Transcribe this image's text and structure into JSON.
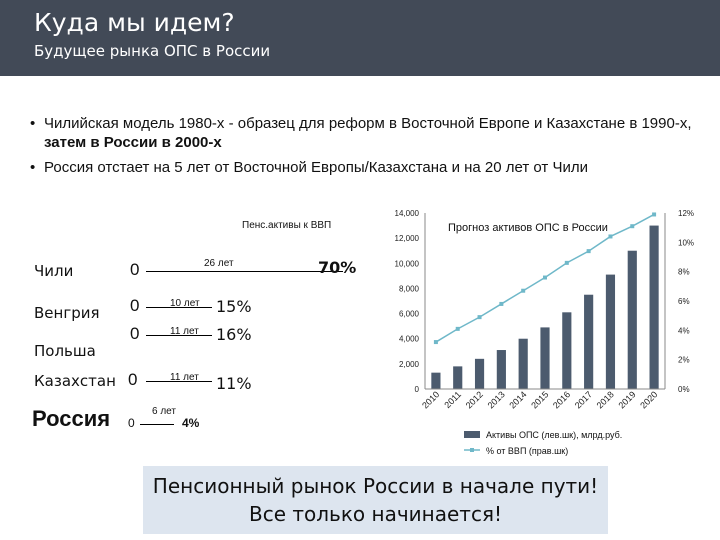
{
  "header": {
    "title": "Куда мы идем?",
    "subtitle": "Будущее рынка ОПС в России",
    "bg_color": "#424a57"
  },
  "bullets": [
    {
      "text": "Чилийская модель 1980-х - образец для реформ в Восточной Европе и Казахстане в 1990-х, ",
      "bold": "затем в России в 2000-х"
    },
    {
      "text": "Россия отстает на 5 лет от Восточной Европы/Казахстана и на 20 лет от Чили",
      "bold": ""
    }
  ],
  "timeline": {
    "title": "Пенс.активы к ВВП",
    "rows": [
      {
        "country": "Чили",
        "start": "0",
        "years": "26 лет",
        "pct": "70%"
      },
      {
        "country": "Венгрия",
        "start": "0",
        "years": "10 лет",
        "pct": "15%"
      },
      {
        "country": "Польша",
        "start": "0",
        "years": "11 лет",
        "pct": "16%"
      },
      {
        "country": "Казахстан",
        "start": "0",
        "years": "11 лет",
        "pct": "11%"
      },
      {
        "country": "Россия",
        "start": "0",
        "years": "6 лет",
        "pct": "4%"
      }
    ]
  },
  "chart_data": {
    "type": "bar",
    "title": "Прогноз активов ОПС в России",
    "categories": [
      "2010",
      "2011",
      "2012",
      "2013",
      "2014",
      "2015",
      "2016",
      "2017",
      "2018",
      "2019",
      "2020"
    ],
    "series": [
      {
        "name": "Активы ОПС (лев.шк), млрд.руб.",
        "type": "bar",
        "axis": "left",
        "values": [
          1300,
          1800,
          2400,
          3100,
          4000,
          4900,
          6100,
          7500,
          9100,
          11000,
          13000
        ],
        "color": "#4c5b6e"
      },
      {
        "name": "% от ВВП (прав.шк)",
        "type": "line",
        "axis": "right",
        "values": [
          3.2,
          4.1,
          4.9,
          5.8,
          6.7,
          7.6,
          8.6,
          9.4,
          10.4,
          11.1,
          11.9
        ],
        "color": "#6fb8c9"
      }
    ],
    "y_left": {
      "min": 0,
      "max": 14000,
      "ticks": [
        "0",
        "2,000",
        "4,000",
        "6,000",
        "8,000",
        "10,000",
        "12,000",
        "14,000"
      ]
    },
    "y_right": {
      "min": 0,
      "max": 12,
      "ticks": [
        "0%",
        "2%",
        "4%",
        "6%",
        "8%",
        "10%",
        "12%"
      ]
    },
    "legend_position": "bottom"
  },
  "callout": {
    "line1": "Пенсионный рынок России в начале пути!",
    "line2": "Все только начинается!"
  }
}
